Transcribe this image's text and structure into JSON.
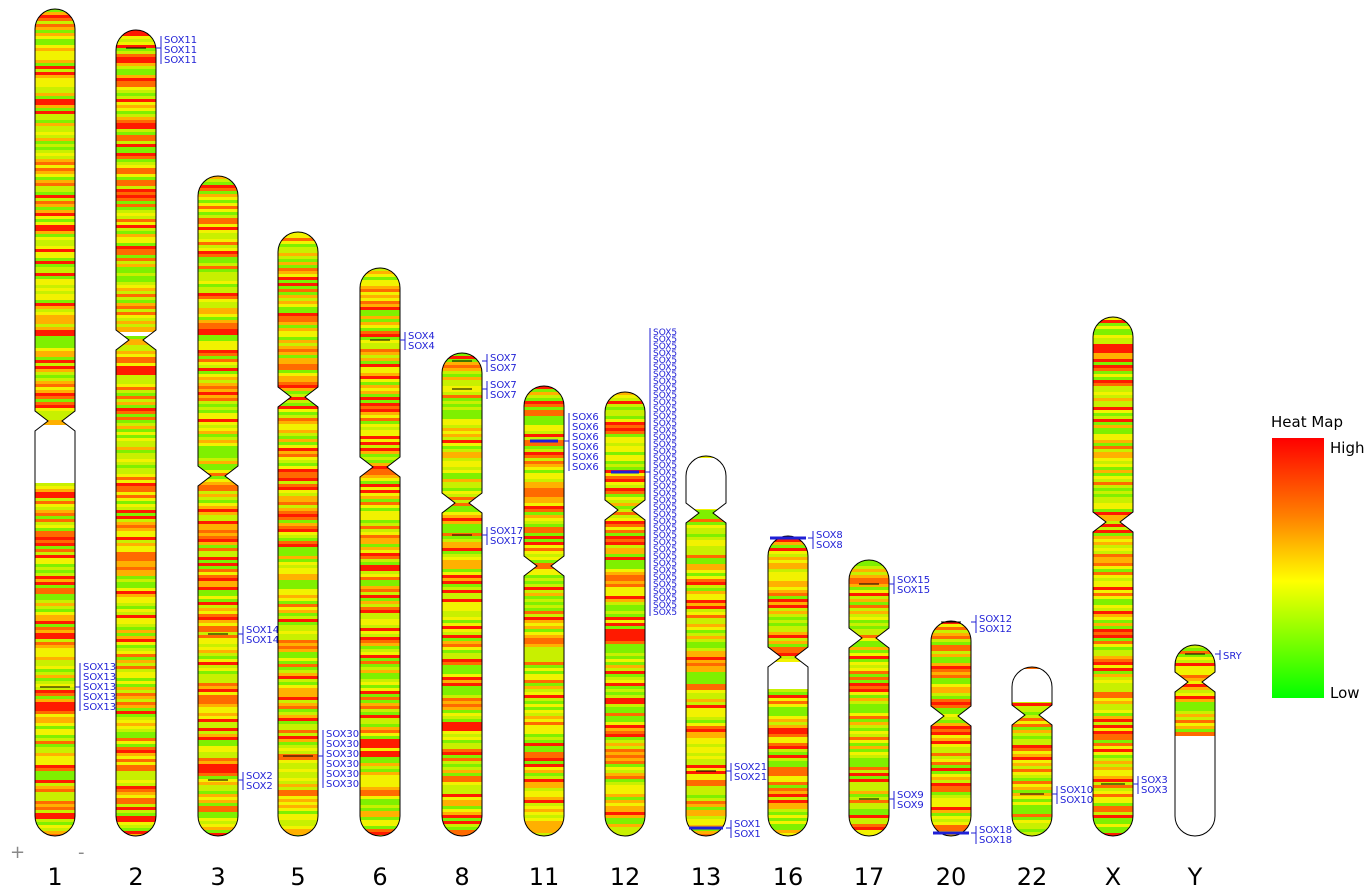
{
  "zoom": {
    "plus": "+",
    "minus": "-"
  },
  "legend": {
    "title": "Heat Map",
    "high": "High",
    "low": "Low",
    "colors": [
      "#ff0000",
      "#ff7f00",
      "#ffff00",
      "#7fff00",
      "#00ff00"
    ]
  },
  "colors": {
    "label": "#1f1fd6",
    "outline": "#000000"
  },
  "chromosomes": [
    {
      "name": "1",
      "seed": 11,
      "genes": [
        {
          "labels": [
            "SOX13",
            "SOX13",
            "SOX13",
            "SOX13",
            "SOX13"
          ]
        }
      ]
    },
    {
      "name": "2",
      "seed": 22,
      "genes": [
        {
          "labels": [
            "SOX11",
            "SOX11",
            "SOX11"
          ]
        }
      ]
    },
    {
      "name": "3",
      "seed": 33,
      "genes": [
        {
          "labels": [
            "SOX14",
            "SOX14"
          ]
        },
        {
          "labels": [
            "SOX2",
            "SOX2"
          ]
        }
      ]
    },
    {
      "name": "5",
      "seed": 44,
      "genes": [
        {
          "labels": [
            "SOX30",
            "SOX30",
            "SOX30",
            "SOX30",
            "SOX30",
            "SOX30"
          ]
        }
      ]
    },
    {
      "name": "6",
      "seed": 55,
      "genes": [
        {
          "labels": [
            "SOX4",
            "SOX4"
          ]
        }
      ]
    },
    {
      "name": "8",
      "seed": 66,
      "genes": [
        {
          "labels": [
            "SOX7",
            "SOX7"
          ]
        },
        {
          "labels": [
            "SOX7",
            "SOX7"
          ]
        },
        {
          "labels": [
            "SOX17",
            "SOX17"
          ]
        }
      ]
    },
    {
      "name": "11",
      "seed": 77,
      "genes": [
        {
          "labels": [
            "SOX6",
            "SOX6",
            "SOX6",
            "SOX6",
            "SOX6",
            "SOX6"
          ]
        }
      ]
    },
    {
      "name": "12",
      "seed": 88,
      "genes": [
        {
          "labels": [
            "SOX5",
            "SOX5",
            "SOX5",
            "SOX5",
            "SOX5",
            "SOX5",
            "SOX5",
            "SOX5",
            "SOX5",
            "SOX5",
            "SOX5",
            "SOX5",
            "SOX5",
            "SOX5",
            "SOX5",
            "SOX5",
            "SOX5",
            "SOX5",
            "SOX5",
            "SOX5",
            "SOX5",
            "SOX5",
            "SOX5",
            "SOX5",
            "SOX5",
            "SOX5",
            "SOX5",
            "SOX5",
            "SOX5",
            "SOX5",
            "SOX5",
            "SOX5",
            "SOX5",
            "SOX5",
            "SOX5",
            "SOX5",
            "SOX5",
            "SOX5",
            "SOX5",
            "SOX5",
            "SOX5"
          ]
        }
      ]
    },
    {
      "name": "13",
      "seed": 99,
      "genes": [
        {
          "labels": [
            "SOX21",
            "SOX21"
          ]
        },
        {
          "labels": [
            "SOX1",
            "SOX1"
          ]
        }
      ]
    },
    {
      "name": "16",
      "seed": 110,
      "genes": [
        {
          "labels": [
            "SOX8",
            "SOX8"
          ]
        }
      ]
    },
    {
      "name": "17",
      "seed": 121,
      "genes": [
        {
          "labels": [
            "SOX15",
            "SOX15"
          ]
        },
        {
          "labels": [
            "SOX9",
            "SOX9"
          ]
        }
      ]
    },
    {
      "name": "20",
      "seed": 132,
      "genes": [
        {
          "labels": [
            "SOX12",
            "SOX12"
          ]
        },
        {
          "labels": [
            "SOX18",
            "SOX18"
          ]
        }
      ]
    },
    {
      "name": "22",
      "seed": 143,
      "genes": [
        {
          "labels": [
            "SOX10",
            "SOX10"
          ]
        }
      ]
    },
    {
      "name": "X",
      "seed": 154,
      "genes": [
        {
          "labels": [
            "SOX3",
            "SOX3"
          ]
        }
      ]
    },
    {
      "name": "Y",
      "seed": 165,
      "genes": [
        {
          "labels": [
            "SRY"
          ]
        }
      ]
    }
  ]
}
